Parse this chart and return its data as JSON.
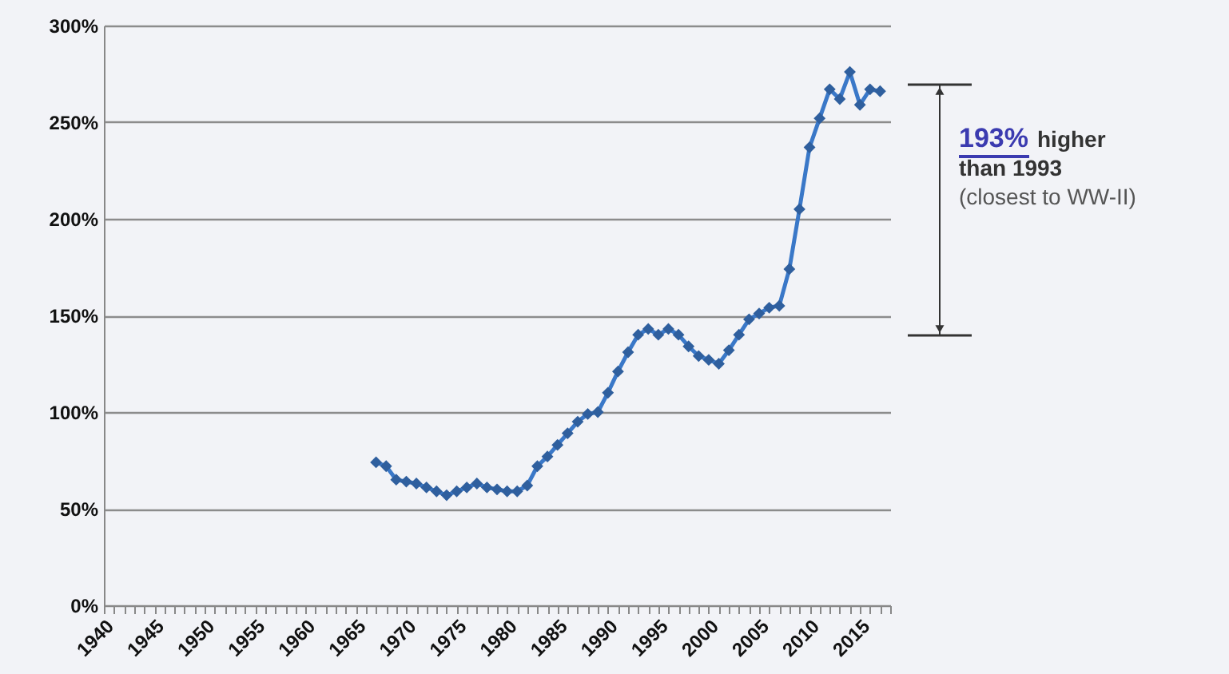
{
  "chart_data": {
    "type": "line",
    "x": [
      1967,
      1968,
      1969,
      1970,
      1971,
      1972,
      1973,
      1974,
      1975,
      1976,
      1977,
      1978,
      1979,
      1980,
      1981,
      1982,
      1983,
      1984,
      1985,
      1986,
      1987,
      1988,
      1989,
      1990,
      1991,
      1992,
      1993,
      1994,
      1995,
      1996,
      1997,
      1998,
      1999,
      2000,
      2001,
      2002,
      2003,
      2004,
      2005,
      2006,
      2007,
      2008,
      2009,
      2010,
      2011,
      2012,
      2013,
      2014,
      2015,
      2016,
      2017
    ],
    "series": [
      {
        "color": "#3a78c8",
        "values": [
          74,
          72,
          65,
          64,
          63,
          61,
          59,
          57,
          59,
          61,
          63,
          61,
          60,
          59,
          59,
          62,
          72,
          77,
          83,
          89,
          95,
          99,
          100,
          110,
          121,
          131,
          140,
          143,
          140,
          143,
          140,
          134,
          129,
          127,
          125,
          132,
          140,
          148,
          151,
          154,
          155,
          174,
          205,
          237,
          252,
          267,
          262,
          276,
          259,
          267,
          266
        ]
      }
    ],
    "marker": "diamond",
    "line_style": "solid",
    "grid": "y",
    "xlim": [
      1940,
      2018
    ],
    "xticks": [
      1940,
      {
        "value": 1941,
        "label": null
      },
      {
        "value": 1942,
        "label": null
      },
      {
        "value": 1943,
        "label": null
      },
      {
        "value": 1944,
        "label": null
      },
      1945,
      {
        "value": 1946,
        "label": null
      },
      {
        "value": 1947,
        "label": null
      },
      {
        "value": 1948,
        "label": null
      },
      {
        "value": 1949,
        "label": null
      },
      1950,
      {
        "value": 1951,
        "label": null
      },
      {
        "value": 1952,
        "label": null
      },
      {
        "value": 1953,
        "label": null
      },
      {
        "value": 1954,
        "label": null
      },
      1955,
      {
        "value": 1956,
        "label": null
      },
      {
        "value": 1957,
        "label": null
      },
      {
        "value": 1958,
        "label": null
      },
      {
        "value": 1959,
        "label": null
      },
      1960,
      {
        "value": 1961,
        "label": null
      },
      {
        "value": 1962,
        "label": null
      },
      {
        "value": 1963,
        "label": null
      },
      {
        "value": 1964,
        "label": null
      },
      1965,
      {
        "value": 1966,
        "label": null
      },
      {
        "value": 1967,
        "label": null
      },
      {
        "value": 1968,
        "label": null
      },
      {
        "value": 1969,
        "label": null
      },
      1970,
      {
        "value": 1971,
        "label": null
      },
      {
        "value": 1972,
        "label": null
      },
      {
        "value": 1973,
        "label": null
      },
      {
        "value": 1974,
        "label": null
      },
      1975,
      {
        "value": 1976,
        "label": null
      },
      {
        "value": 1977,
        "label": null
      },
      {
        "value": 1978,
        "label": null
      },
      {
        "value": 1979,
        "label": null
      },
      1980,
      {
        "value": 1981,
        "label": null
      },
      {
        "value": 1982,
        "label": null
      },
      {
        "value": 1983,
        "label": null
      },
      {
        "value": 1984,
        "label": null
      },
      1985,
      {
        "value": 1986,
        "label": null
      },
      {
        "value": 1987,
        "label": null
      },
      {
        "value": 1988,
        "label": null
      },
      {
        "value": 1989,
        "label": null
      },
      1990,
      {
        "value": 1991,
        "label": null
      },
      {
        "value": 1992,
        "label": null
      },
      {
        "value": 1993,
        "label": null
      },
      {
        "value": 1994,
        "label": null
      },
      1995,
      {
        "value": 1996,
        "label": null
      },
      {
        "value": 1997,
        "label": null
      },
      {
        "value": 1998,
        "label": null
      },
      {
        "value": 1999,
        "label": null
      },
      2000,
      {
        "value": 2001,
        "label": null
      },
      {
        "value": 2002,
        "label": null
      },
      {
        "value": 2003,
        "label": null
      },
      {
        "value": 2004,
        "label": null
      },
      2005,
      {
        "value": 2006,
        "label": null
      },
      {
        "value": 2007,
        "label": null
      },
      {
        "value": 2008,
        "label": null
      },
      {
        "value": 2009,
        "label": null
      },
      2010,
      {
        "value": 2011,
        "label": null
      },
      {
        "value": 2012,
        "label": null
      },
      {
        "value": 2013,
        "label": null
      },
      {
        "value": 2014,
        "label": null
      },
      2015,
      {
        "value": 2016,
        "label": null
      },
      {
        "value": 2017,
        "label": null
      },
      {
        "value": 2018,
        "label": null
      }
    ],
    "ylim": [
      0,
      300
    ],
    "yticks": [
      {
        "value": 0,
        "label": "0%"
      },
      {
        "value": 50,
        "label": "50%"
      },
      {
        "value": 100,
        "label": "100%"
      },
      {
        "value": 150,
        "label": "150%"
      },
      {
        "value": 200,
        "label": "200%"
      },
      {
        "value": 250,
        "label": "250%"
      },
      {
        "value": 300,
        "label": "300%"
      }
    ],
    "annotations": [
      "193% higher\nthan 1993\n(closest to WW-II)"
    ]
  }
}
